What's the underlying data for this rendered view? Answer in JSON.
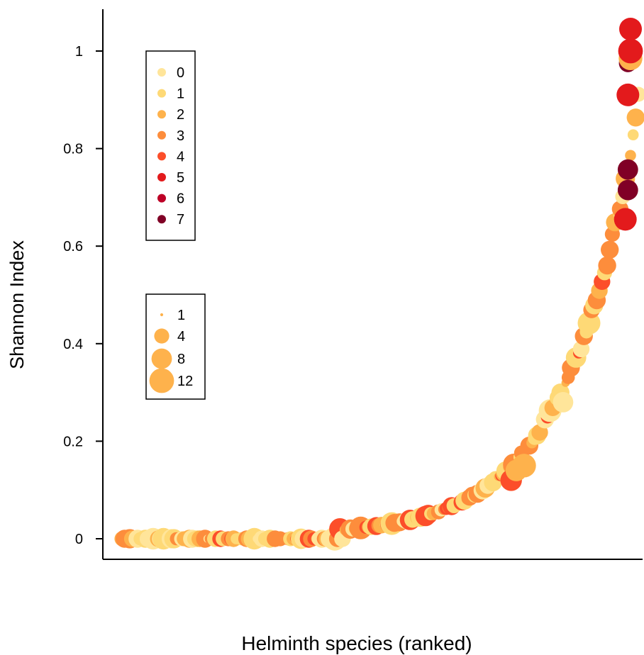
{
  "chart_data": {
    "type": "scatter",
    "title": "",
    "xlabel": "Helminth species  (ranked)",
    "ylabel": "Shannon Index",
    "ylim": [
      -0.04,
      1.08
    ],
    "y_ticks": [
      0,
      0.2,
      0.4,
      0.6,
      0.8,
      1
    ],
    "y_tick_labels": [
      "0",
      "0.2",
      "0.4",
      "0.6",
      "0.8",
      "1"
    ],
    "x_ticks_shown": false,
    "n_points": 200,
    "color_legend": {
      "position": "top-left",
      "levels": [
        "0",
        "1",
        "2",
        "3",
        "4",
        "5",
        "6",
        "7"
      ],
      "colors": [
        "#ffe59a",
        "#fed976",
        "#feb24c",
        "#fd8d3c",
        "#fc4e2a",
        "#e31a1c",
        "#bd0026",
        "#800026"
      ]
    },
    "size_legend": {
      "position": "left",
      "labels": [
        "1",
        "4",
        "8",
        "12"
      ],
      "values": [
        1,
        4,
        8,
        12
      ],
      "color": "#feb24c"
    }
  }
}
